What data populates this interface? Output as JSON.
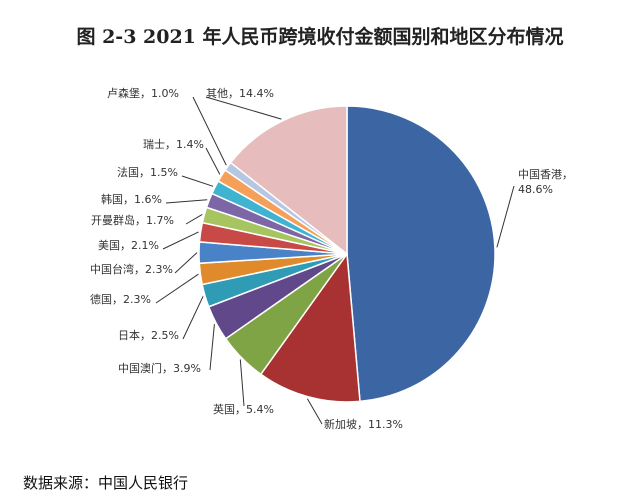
{
  "title": "图 2-3 2021 年人民币跨境收付金额国别和地区分布情况",
  "source": "数据来源：中国人民银行",
  "chart_data": {
    "type": "pie",
    "unit": "%",
    "start": "12 o'clock, clockwise",
    "slices": [
      {
        "label": "中国香港",
        "value": 48.6,
        "display": "中国香港，\n48.6%",
        "color": "#3c65a3"
      },
      {
        "label": "新加坡",
        "value": 11.3,
        "display": "新加坡，11.3%",
        "color": "#a83232"
      },
      {
        "label": "英国",
        "value": 5.4,
        "display": "英国，5.4%",
        "color": "#7ea446"
      },
      {
        "label": "中国澳门",
        "value": 3.9,
        "display": "中国澳门，3.9%",
        "color": "#60488a"
      },
      {
        "label": "日本",
        "value": 2.5,
        "display": "日本，2.5%",
        "color": "#2f9bb5"
      },
      {
        "label": "德国",
        "value": 2.3,
        "display": "德国，2.3%",
        "color": "#e08a2b"
      },
      {
        "label": "中国台湾",
        "value": 2.3,
        "display": "中国台湾，2.3%",
        "color": "#4a82c8"
      },
      {
        "label": "美国",
        "value": 2.1,
        "display": "美国，2.1%",
        "color": "#c84a46"
      },
      {
        "label": "开曼群岛",
        "value": 1.7,
        "display": "开曼群岛，1.7%",
        "color": "#a6c460"
      },
      {
        "label": "韩国",
        "value": 1.6,
        "display": "韩国，1.6%",
        "color": "#7d66a6"
      },
      {
        "label": "法国",
        "value": 1.5,
        "display": "法国，1.5%",
        "color": "#3fb3cf"
      },
      {
        "label": "瑞士",
        "value": 1.4,
        "display": "瑞士，1.4%",
        "color": "#f4a05a"
      },
      {
        "label": "卢森堡",
        "value": 1.0,
        "display": "卢森堡，1.0%",
        "color": "#b6c7e4"
      },
      {
        "label": "其他",
        "value": 14.4,
        "display": "其他，14.4%",
        "color": "#e7bcbc"
      }
    ]
  }
}
